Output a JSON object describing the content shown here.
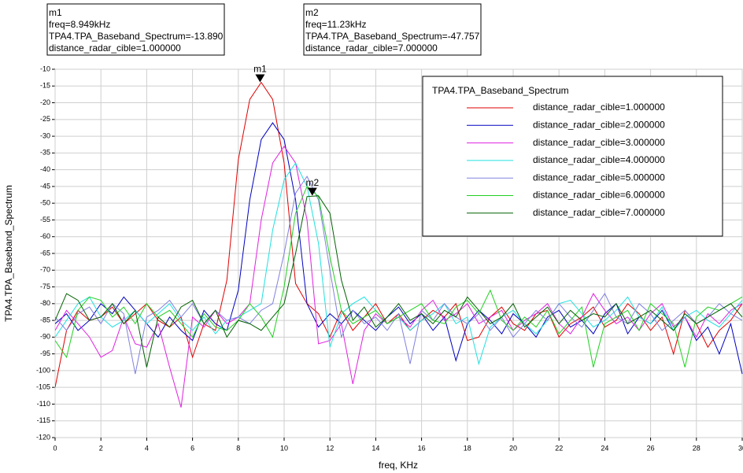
{
  "chart_data": {
    "type": "line",
    "xlabel": "freq, KHz",
    "ylabel": "TPA4.TPA_Baseband_Spectrum",
    "legend_title": "TPA4.TPA_Baseband_Spectrum",
    "legend": "upper right",
    "grid": true,
    "xlim": [
      0,
      30
    ],
    "ylim": [
      -120,
      -10
    ],
    "xticks": [
      0,
      2,
      4,
      6,
      8,
      10,
      12,
      14,
      16,
      18,
      20,
      22,
      24,
      26,
      28,
      30
    ],
    "yticks": [
      -10,
      -15,
      -20,
      -25,
      -30,
      -35,
      -40,
      -45,
      -50,
      -55,
      -60,
      -65,
      -70,
      -75,
      -80,
      -85,
      -90,
      -95,
      -100,
      -105,
      -110,
      -115,
      -120
    ],
    "markers": [
      {
        "name": "m1",
        "lines": [
          "m1",
          "freq=8.949kHz",
          "TPA4.TPA_Baseband_Spectrum=-13.890",
          "distance_radar_cible=1.000000"
        ],
        "x": 8.949,
        "y": -13.89
      },
      {
        "name": "m2",
        "lines": [
          "m2",
          "freq=11.23kHz",
          "TPA4.TPA_Baseband_Spectrum=-47.757",
          "distance_radar_cible=7.000000"
        ],
        "x": 11.23,
        "y": -47.757
      }
    ],
    "x": [
      0,
      0.5,
      1,
      1.5,
      2,
      2.5,
      3,
      3.5,
      4,
      4.5,
      5,
      5.5,
      6,
      6.5,
      7,
      7.5,
      8,
      8.5,
      9,
      9.5,
      10,
      10.5,
      11,
      11.5,
      12,
      12.5,
      13,
      13.5,
      14,
      14.5,
      15,
      15.5,
      16,
      16.5,
      17,
      17.5,
      18,
      18.5,
      19,
      19.5,
      20,
      20.5,
      21,
      21.5,
      22,
      22.5,
      23,
      23.5,
      24,
      24.5,
      25,
      25.5,
      26,
      26.5,
      27,
      27.5,
      28,
      28.5,
      29,
      29.5,
      30
    ],
    "series": [
      {
        "name": "distance_radar_cible=1.000000",
        "color": "#e00000",
        "values": [
          -105,
          -88,
          -82,
          -85,
          -84,
          -81,
          -86,
          -83,
          -80,
          -85,
          -87,
          -84,
          -96,
          -86,
          -88,
          -73,
          -37,
          -19,
          -13.9,
          -19,
          -38,
          -74,
          -80,
          -83,
          -90,
          -82,
          -88,
          -84,
          -80,
          -86,
          -83,
          -88,
          -85,
          -82,
          -84,
          -80,
          -91,
          -90,
          -84,
          -81,
          -86,
          -88,
          -83,
          -82,
          -90,
          -86,
          -84,
          -81,
          -87,
          -85,
          -80,
          -83,
          -88,
          -84,
          -95,
          -82,
          -86,
          -93,
          -88,
          -85,
          -80
        ]
      },
      {
        "name": "distance_radar_cible=2.000000",
        "color": "#0000c0",
        "values": [
          -86,
          -83,
          -88,
          -85,
          -80,
          -83,
          -78,
          -82,
          -86,
          -90,
          -84,
          -88,
          -91,
          -82,
          -86,
          -88,
          -76,
          -49,
          -31,
          -26,
          -31,
          -49,
          -80,
          -87,
          -83,
          -86,
          -82,
          -85,
          -88,
          -84,
          -81,
          -86,
          -83,
          -88,
          -84,
          -97,
          -86,
          -82,
          -85,
          -89,
          -83,
          -86,
          -90,
          -84,
          -82,
          -87,
          -85,
          -89,
          -83,
          -80,
          -89,
          -84,
          -86,
          -82,
          -88,
          -84,
          -91,
          -87,
          -95,
          -86,
          -101
        ]
      },
      {
        "name": "distance_radar_cible=3.000000",
        "color": "#e020e0",
        "values": [
          -88,
          -82,
          -86,
          -90,
          -96,
          -94,
          -84,
          -92,
          -93,
          -86,
          -99,
          -111,
          -84,
          -87,
          -82,
          -86,
          -84,
          -80,
          -55,
          -38,
          -33,
          -38,
          -55,
          -92,
          -91,
          -86,
          -104,
          -88,
          -83,
          -86,
          -84,
          -87,
          -82,
          -79,
          -85,
          -83,
          -80,
          -86,
          -84,
          -82,
          -88,
          -85,
          -83,
          -80,
          -86,
          -89,
          -84,
          -77,
          -82,
          -86,
          -84,
          -88,
          -83,
          -80,
          -87,
          -84,
          -90,
          -83,
          -86,
          -82,
          -80
        ]
      },
      {
        "name": "distance_radar_cible=4.000000",
        "color": "#20e0e0",
        "values": [
          -90,
          -85,
          -80,
          -78,
          -84,
          -87,
          -85,
          -82,
          -86,
          -83,
          -80,
          -85,
          -88,
          -84,
          -89,
          -85,
          -84,
          -82,
          -80,
          -58,
          -43,
          -38,
          -45,
          -62,
          -93,
          -83,
          -80,
          -78,
          -82,
          -86,
          -84,
          -88,
          -85,
          -83,
          -80,
          -86,
          -84,
          -98,
          -87,
          -84,
          -82,
          -86,
          -89,
          -85,
          -80,
          -79,
          -83,
          -87,
          -85,
          -82,
          -78,
          -84,
          -86,
          -81,
          -88,
          -84,
          -82,
          -85,
          -87,
          -83,
          -79
        ]
      },
      {
        "name": "distance_radar_cible=5.000000",
        "color": "#8080e0",
        "values": [
          -84,
          -88,
          -83,
          -81,
          -86,
          -80,
          -83,
          -101,
          -84,
          -82,
          -79,
          -84,
          -80,
          -86,
          -82,
          -85,
          -84,
          -86,
          -82,
          -80,
          -65,
          -47,
          -42,
          -49,
          -70,
          -90,
          -82,
          -86,
          -84,
          -88,
          -83,
          -98,
          -82,
          -85,
          -80,
          -84,
          -86,
          -83,
          -88,
          -84,
          -90,
          -86,
          -82,
          -85,
          -80,
          -84,
          -87,
          -82,
          -77,
          -84,
          -86,
          -80,
          -83,
          -88,
          -85,
          -82,
          -86,
          -84,
          -80,
          -83,
          -85
        ]
      },
      {
        "name": "distance_radar_cible=6.000000",
        "color": "#20d020",
        "values": [
          -91,
          -96,
          -82,
          -78,
          -79,
          -84,
          -81,
          -86,
          -80,
          -84,
          -82,
          -86,
          -90,
          -83,
          -87,
          -88,
          -85,
          -80,
          -84,
          -90,
          -75,
          -53,
          -45,
          -48,
          -66,
          -82,
          -86,
          -84,
          -82,
          -86,
          -84,
          -82,
          -80,
          -85,
          -86,
          -81,
          -79,
          -83,
          -76,
          -85,
          -88,
          -84,
          -87,
          -82,
          -89,
          -85,
          -81,
          -99,
          -86,
          -84,
          -82,
          -88,
          -80,
          -83,
          -86,
          -99,
          -84,
          -81,
          -82,
          -80,
          -78
        ]
      },
      {
        "name": "distance_radar_cible=7.000000",
        "color": "#006000",
        "values": [
          -85,
          -77,
          -79,
          -85,
          -84,
          -80,
          -86,
          -82,
          -99,
          -84,
          -87,
          -81,
          -79,
          -86,
          -82,
          -90,
          -85,
          -86,
          -88,
          -84,
          -80,
          -65,
          -48,
          -47.8,
          -53,
          -73,
          -85,
          -81,
          -87,
          -84,
          -80,
          -85,
          -83,
          -86,
          -82,
          -84,
          -78,
          -82,
          -86,
          -84,
          -80,
          -87,
          -84,
          -81,
          -86,
          -82,
          -85,
          -83,
          -84,
          -80,
          -86,
          -84,
          -82,
          -85,
          -88,
          -83,
          -86,
          -84,
          -82,
          -80,
          -84
        ]
      }
    ]
  }
}
